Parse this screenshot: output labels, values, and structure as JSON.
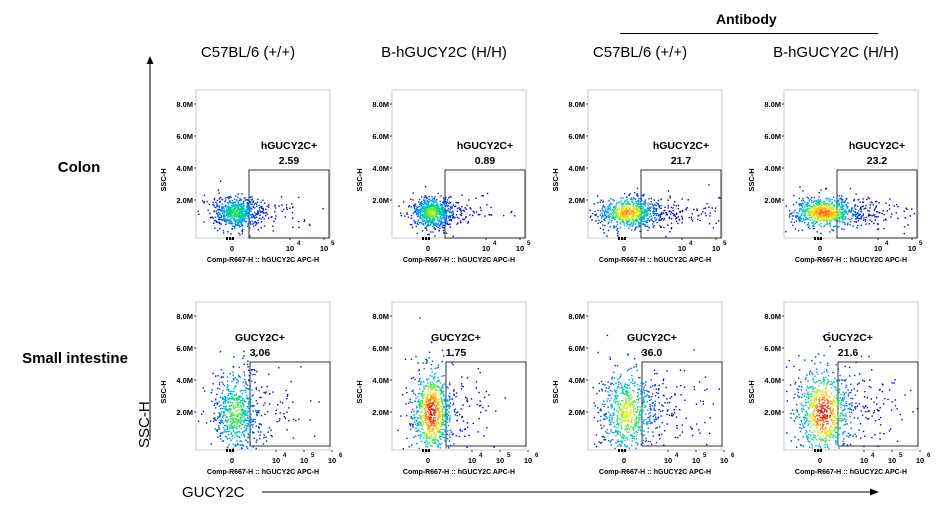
{
  "header": {
    "group_label": "Antibody",
    "columns": [
      "C57BL/6 (+/+)",
      "B-hGUCY2C (H/H)",
      "C57BL/6 (+/+)",
      "B-hGUCY2C (H/H)"
    ]
  },
  "rows": [
    "Colon",
    "Small intestine"
  ],
  "axes": {
    "y_name": "SSC-H",
    "x_name": "GUCY2C"
  },
  "chart_data": [
    {
      "type": "scatter",
      "row": "Colon",
      "column": "C57BL/6 (+/+)",
      "gate": "hGUCY2C+",
      "gate_percent": "2.59",
      "xlabel": "Comp-R667-H :: hGUCY2C APC-H",
      "ylabel": "SSC-H",
      "y_ticks": [
        "2.0M",
        "4.0M",
        "6.0M",
        "8.0M"
      ],
      "x_ticks": [
        "0",
        "10",
        "10"
      ],
      "x_tick_exps": [
        "",
        "4",
        "5"
      ],
      "spread": 0.3,
      "intensity": 0.55
    },
    {
      "type": "scatter",
      "row": "Colon",
      "column": "B-hGUCY2C (H/H)",
      "gate": "hGUCY2C+",
      "gate_percent": "0.89",
      "xlabel": "Comp-R667-H :: hGUCY2C APC-H",
      "ylabel": "SSC-H",
      "y_ticks": [
        "2.0M",
        "4.0M",
        "6.0M",
        "8.0M"
      ],
      "x_ticks": [
        "0",
        "10",
        "10"
      ],
      "x_tick_exps": [
        "",
        "4",
        "5"
      ],
      "spread": 0.25,
      "intensity": 0.65
    },
    {
      "type": "scatter",
      "row": "Colon",
      "column": "C57BL/6 (+/+)",
      "gate": "hGUCY2C+",
      "gate_percent": "21.7",
      "xlabel": "Comp-R667-H :: hGUCY2C APC-H",
      "ylabel": "SSC-H",
      "y_ticks": [
        "2.0M",
        "4.0M",
        "6.0M",
        "8.0M"
      ],
      "x_ticks": [
        "0",
        "10",
        "10"
      ],
      "x_tick_exps": [
        "",
        "4",
        "5"
      ],
      "spread": 0.5,
      "intensity": 0.85
    },
    {
      "type": "scatter",
      "row": "Colon",
      "column": "B-hGUCY2C (H/H)",
      "gate": "hGUCY2C+",
      "gate_percent": "23.2",
      "xlabel": "Comp-R667-H :: hGUCY2C APC-H",
      "ylabel": "SSC-H",
      "y_ticks": [
        "2.0M",
        "4.0M",
        "6.0M",
        "8.0M"
      ],
      "x_ticks": [
        "0",
        "10",
        "10"
      ],
      "x_tick_exps": [
        "",
        "4",
        "5"
      ],
      "spread": 0.6,
      "intensity": 0.9
    },
    {
      "type": "scatter",
      "row": "Small intestine",
      "column": "C57BL/6 (+/+)",
      "gate": "GUCY2C+",
      "gate_percent": "3.06",
      "xlabel": "Comp-R667-H :: hGUCY2C APC-H",
      "ylabel": "SSC-H",
      "y_ticks": [
        "2.0M",
        "4.0M",
        "6.0M",
        "8.0M"
      ],
      "x_ticks": [
        "0",
        "10",
        "10",
        "10"
      ],
      "x_tick_exps": [
        "",
        "4",
        "5",
        "6"
      ],
      "spread": 0.3,
      "intensity": 0.6
    },
    {
      "type": "scatter",
      "row": "Small intestine",
      "column": "B-hGUCY2C (H/H)",
      "gate": "GUCY2C+",
      "gate_percent": "1.75",
      "xlabel": "Comp-R667-H :: hGUCY2C APC-H",
      "ylabel": "SSC-H",
      "y_ticks": [
        "2.0M",
        "4.0M",
        "6.0M",
        "8.0M"
      ],
      "x_ticks": [
        "0",
        "10",
        "10",
        "10"
      ],
      "x_tick_exps": [
        "",
        "4",
        "5",
        "6"
      ],
      "spread": 0.25,
      "intensity": 1.0
    },
    {
      "type": "scatter",
      "row": "Small intestine",
      "column": "C57BL/6 (+/+)",
      "gate": "GUCY2C+",
      "gate_percent": "36.0",
      "xlabel": "Comp-R667-H :: hGUCY2C APC-H",
      "ylabel": "SSC-H",
      "y_ticks": [
        "2.0M",
        "4.0M",
        "6.0M",
        "8.0M"
      ],
      "x_ticks": [
        "0",
        "10",
        "10",
        "10"
      ],
      "x_tick_exps": [
        "",
        "4",
        "5",
        "6"
      ],
      "spread": 0.45,
      "intensity": 0.7
    },
    {
      "type": "scatter",
      "row": "Small intestine",
      "column": "B-hGUCY2C (H/H)",
      "gate": "GUCY2C+",
      "gate_percent": "21.6",
      "xlabel": "Comp-R667-H :: hGUCY2C APC-H",
      "ylabel": "SSC-H",
      "y_ticks": [
        "2.0M",
        "4.0M",
        "6.0M",
        "8.0M"
      ],
      "x_ticks": [
        "0",
        "10",
        "10",
        "10"
      ],
      "x_tick_exps": [
        "",
        "4",
        "5",
        "6"
      ],
      "spread": 0.45,
      "intensity": 1.0
    }
  ]
}
